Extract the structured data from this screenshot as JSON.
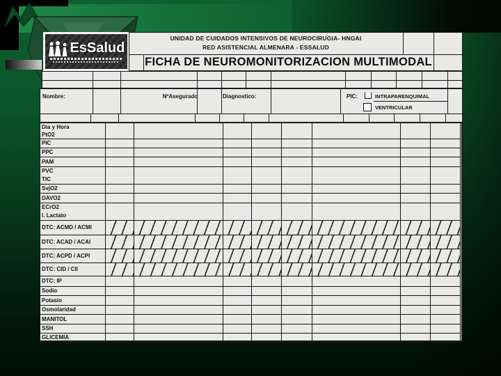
{
  "logo": {
    "name": "EsSalud"
  },
  "form_header": {
    "line1": "UNIDAD DE CUIDADOS INTENSIVOS DE NEUROCIRUGIA- HNGAI",
    "line2": "RED ASISTENCIAL ALMENARA - ESSALUD",
    "title": "FICHA DE NEUROMONITORIZACION MULTIMODAL"
  },
  "patient_fields": {
    "nombre": "Nombre:",
    "asegurado": "NºAsegurado",
    "diagnostico": "Diagnostico:",
    "pic": "PIC:",
    "pic_option1": "INTRAPARENQUIMAL",
    "pic_option2": "VENTRICULAR"
  },
  "table": {
    "rows": [
      {
        "labels": [
          "Dia y Hora",
          "PtO2"
        ],
        "hatched": false
      },
      {
        "labels": [
          "PIC"
        ],
        "hatched": false
      },
      {
        "labels": [
          "PPC"
        ],
        "hatched": false
      },
      {
        "labels": [
          "PAM"
        ],
        "hatched": false
      },
      {
        "labels": [
          "PVC",
          "TIC"
        ],
        "hatched": false
      },
      {
        "labels": [
          "SvjO2"
        ],
        "hatched": false
      },
      {
        "labels": [
          "DAVO2"
        ],
        "hatched": false
      },
      {
        "labels": [
          "ECrO2",
          "I. Lactato"
        ],
        "hatched": false
      },
      {
        "labels": [
          "DTC: ACMD / ACMI"
        ],
        "hatched": true
      },
      {
        "labels": [
          "DTC: ACAD / ACAI"
        ],
        "hatched": true
      },
      {
        "labels": [
          "DTC: ACPD / ACPI"
        ],
        "hatched": true
      },
      {
        "labels": [
          "DTC: CID / CII"
        ],
        "hatched": true
      },
      {
        "labels": [
          "DTC: IP"
        ],
        "hatched": false
      },
      {
        "labels": [
          "Sodio"
        ],
        "hatched": false
      },
      {
        "labels": [
          "Potasio"
        ],
        "hatched": false
      },
      {
        "labels": [
          "Osmolaridad"
        ],
        "hatched": false
      },
      {
        "labels": [
          "MANITOL"
        ],
        "hatched": false
      },
      {
        "labels": [
          "SSH"
        ],
        "hatched": false
      },
      {
        "labels": [
          "GLICEMIA"
        ],
        "hatched": false
      }
    ]
  }
}
